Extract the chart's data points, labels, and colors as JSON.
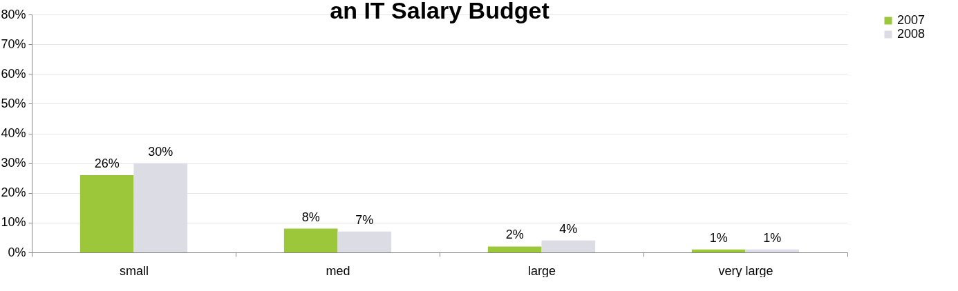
{
  "chart_data": {
    "type": "bar",
    "title": "an IT Salary Budget",
    "categories": [
      "small",
      "med",
      "large",
      "very large"
    ],
    "series": [
      {
        "name": "2007",
        "color": "#9dc73b",
        "values": [
          26,
          8,
          2,
          1
        ],
        "value_labels": [
          "26%",
          "8%",
          "2%",
          "1%"
        ]
      },
      {
        "name": "2008",
        "color": "#dcdce4",
        "values": [
          30,
          7,
          4,
          1
        ],
        "value_labels": [
          "30%",
          "7%",
          "4%",
          "1%"
        ]
      }
    ],
    "ylim": [
      0,
      80
    ],
    "yticks": [
      {
        "value": 0,
        "label": "0%"
      },
      {
        "value": 10,
        "label": "10%"
      },
      {
        "value": 20,
        "label": "20%"
      },
      {
        "value": 30,
        "label": "30%"
      },
      {
        "value": 40,
        "label": "40%"
      },
      {
        "value": 50,
        "label": "50%"
      },
      {
        "value": 60,
        "label": "60%"
      },
      {
        "value": 70,
        "label": "70%"
      },
      {
        "value": 80,
        "label": "80%"
      }
    ],
    "grid": "y",
    "legend": "right"
  }
}
